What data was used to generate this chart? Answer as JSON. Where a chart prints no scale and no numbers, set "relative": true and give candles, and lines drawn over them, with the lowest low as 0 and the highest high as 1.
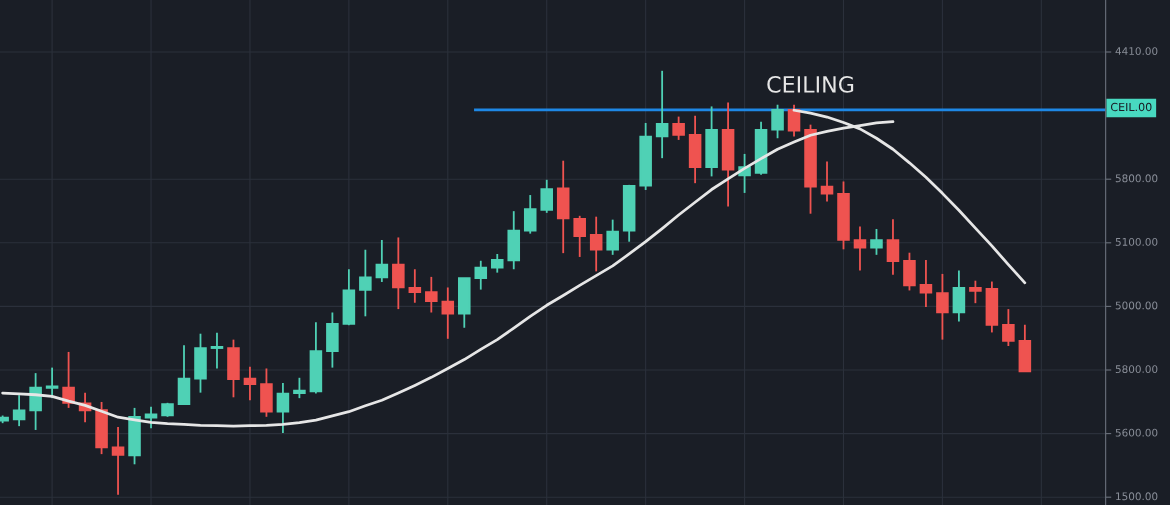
{
  "chart_data": {
    "type": "candlestick",
    "relative": true,
    "categories": [
      null,
      null,
      null,
      null,
      null,
      null,
      null,
      null,
      null,
      null,
      null,
      null,
      null,
      null,
      null,
      null,
      null,
      null,
      null,
      null,
      null,
      null,
      null,
      null,
      null,
      null,
      null,
      null,
      null,
      null,
      null,
      null,
      null,
      null,
      null,
      null,
      null,
      null,
      null,
      null,
      null,
      null,
      null,
      null,
      null,
      null,
      null,
      null,
      null,
      null,
      null,
      null,
      null,
      null,
      null,
      null,
      null,
      null,
      null,
      null,
      null,
      null,
      null
    ],
    "ohlc": [
      [
        0.175,
        0.187,
        0.169,
        0.182
      ],
      [
        0.178,
        0.235,
        0.162,
        0.199
      ],
      [
        0.199,
        0.287,
        0.153,
        0.253
      ],
      [
        0.252,
        0.3,
        0.228,
        0.256
      ],
      [
        0.253,
        0.337,
        0.205,
        0.217
      ],
      [
        0.216,
        0.241,
        0.171,
        0.199
      ],
      [
        0.2,
        0.219,
        0.096,
        0.112
      ],
      [
        0.112,
        0.16,
        0,
        0.094
      ],
      [
        0.093,
        0.205,
        0.072,
        0.184
      ],
      [
        0.182,
        0.208,
        0.157,
        0.19
      ],
      [
        0.187,
        0.217,
        0.184,
        0.214
      ],
      [
        0.214,
        0.353,
        0.214,
        0.274
      ],
      [
        0.274,
        0.38,
        0.241,
        0.346
      ],
      [
        0.346,
        0.382,
        0.298,
        0.349
      ],
      [
        0.346,
        0.366,
        0.23,
        0.273
      ],
      [
        0.274,
        0.302,
        0.223,
        0.261
      ],
      [
        0.261,
        0.298,
        0.184,
        0.196
      ],
      [
        0.196,
        0.264,
        0.146,
        0.239
      ],
      [
        0.24,
        0.276,
        0.228,
        0.246
      ],
      [
        0.244,
        0.407,
        0.239,
        0.339
      ],
      [
        0.339,
        0.43,
        0.3,
        0.403
      ],
      [
        0.403,
        0.532,
        0.4,
        0.482
      ],
      [
        0.483,
        0.578,
        0.421,
        0.513
      ],
      [
        0.513,
        0.601,
        0.502,
        0.543
      ],
      [
        0.543,
        0.607,
        0.438,
        0.489
      ],
      [
        0.488,
        0.532,
        0.453,
        0.478
      ],
      [
        0.478,
        0.514,
        0.43,
        0.457
      ],
      [
        0.456,
        0.489,
        0.368,
        0.427
      ],
      [
        0.427,
        0.511,
        0.394,
        0.511
      ],
      [
        0.511,
        0.552,
        0.484,
        0.536
      ],
      [
        0.536,
        0.568,
        0.524,
        0.554
      ],
      [
        0.553,
        0.669,
        0.532,
        0.623
      ],
      [
        0.623,
        0.707,
        0.616,
        0.674
      ],
      [
        0.672,
        0.743,
        0.665,
        0.721
      ],
      [
        0.723,
        0.788,
        0.57,
        0.652
      ],
      [
        0.651,
        0.658,
        0.561,
        0.61
      ],
      [
        0.613,
        0.656,
        0.527,
        0.578
      ],
      [
        0.578,
        0.649,
        0.566,
        0.621
      ],
      [
        0.623,
        0.731,
        0.597,
        0.729
      ],
      [
        0.729,
        0.877,
        0.719,
        0.845
      ],
      [
        0.845,
        1,
        0.794,
        0.875
      ],
      [
        0.875,
        0.892,
        0.837,
        0.849
      ],
      [
        0.849,
        0.894,
        0.735,
        0.773
      ],
      [
        0.773,
        0.916,
        0.751,
        0.861
      ],
      [
        0.861,
        0.925,
        0.68,
        0.767
      ],
      [
        0.753,
        0.804,
        0.712,
        0.773
      ],
      [
        0.759,
        0.88,
        0.755,
        0.861
      ],
      [
        0.861,
        0.92,
        0.841,
        0.908
      ],
      [
        0.908,
        0.92,
        0.845,
        0.859
      ],
      [
        0.861,
        0.873,
        0.663,
        0.727
      ],
      [
        0.727,
        0.786,
        0.692,
        0.71
      ],
      [
        0.71,
        0.739,
        0.579,
        0.601
      ],
      [
        0.601,
        0.633,
        0.529,
        0.583
      ],
      [
        0.583,
        0.627,
        0.566,
        0.601
      ],
      [
        0.601,
        0.65,
        0.519,
        0.551
      ],
      [
        0.552,
        0.571,
        0.482,
        0.494
      ],
      [
        0.495,
        0.554,
        0.443,
        0.477
      ],
      [
        0.476,
        0.521,
        0.366,
        0.43
      ],
      [
        0.43,
        0.529,
        0.409,
        0.488
      ],
      [
        0.488,
        0.505,
        0.452,
        0.481
      ],
      [
        0.486,
        0.503,
        0.383,
        0.401
      ],
      [
        0.401,
        0.438,
        0.351,
        0.363
      ],
      [
        0.363,
        0.401,
        0.291,
        0.291
      ]
    ],
    "colors": [
      "#4fd1b5",
      "#4fd1b5",
      "#4fd1b5",
      "#4fd1b5",
      "#ef5350",
      "#ef5350",
      "#ef5350",
      "#ef5350",
      "#4fd1b5",
      "#4fd1b5",
      "#4fd1b5",
      "#4fd1b5",
      "#4fd1b5",
      "#4fd1b5",
      "#ef5350",
      "#ef5350",
      "#ef5350",
      "#4fd1b5",
      "#4fd1b5",
      "#4fd1b5",
      "#4fd1b5",
      "#4fd1b5",
      "#4fd1b5",
      "#4fd1b5",
      "#ef5350",
      "#ef5350",
      "#ef5350",
      "#ef5350",
      "#4fd1b5",
      "#4fd1b5",
      "#4fd1b5",
      "#4fd1b5",
      "#4fd1b5",
      "#4fd1b5",
      "#ef5350",
      "#ef5350",
      "#ef5350",
      "#4fd1b5",
      "#4fd1b5",
      "#4fd1b5",
      "#4fd1b5",
      "#ef5350",
      "#ef5350",
      "#4fd1b5",
      "#ef5350",
      "#4fd1b5",
      "#4fd1b5",
      "#4fd1b5",
      "#ef5350",
      "#ef5350",
      "#ef5350",
      "#ef5350",
      "#ef5350",
      "#4fd1b5",
      "#ef5350",
      "#ef5350",
      "#ef5350",
      "#ef5350",
      "#4fd1b5",
      "#ef5350",
      "#ef5350",
      "#ef5350",
      "#ef5350"
    ],
    "series": [
      {
        "type": "line",
        "color": "#e6e6e6",
        "values": [
          0.24,
          0.238,
          0.236,
          0.232,
          0.221,
          0.211,
          0.197,
          0.183,
          0.177,
          0.171,
          0.168,
          0.166,
          0.164,
          0.163,
          0.162,
          0.163,
          0.164,
          0.166,
          0.17,
          0.176,
          0.186,
          0.196,
          0.21,
          0.223,
          0.24,
          0.258,
          0.277,
          0.298,
          0.319,
          0.343,
          0.366,
          0.393,
          0.421,
          0.447,
          0.47,
          0.494,
          0.517,
          0.54,
          0.568,
          0.597,
          0.628,
          0.66,
          0.69,
          0.72,
          0.745,
          0.77,
          0.793,
          0.815,
          0.832,
          0.848,
          0.857,
          0.865,
          0.871,
          0.877,
          0.88,
          null,
          null,
          null,
          null,
          null,
          null,
          null,
          null
        ]
      },
      {
        "type": "line",
        "color": "#e6e6e6",
        "values": [
          null,
          null,
          null,
          null,
          null,
          null,
          null,
          null,
          null,
          null,
          null,
          null,
          null,
          null,
          null,
          null,
          null,
          null,
          null,
          null,
          null,
          null,
          null,
          null,
          null,
          null,
          null,
          null,
          null,
          null,
          null,
          null,
          null,
          null,
          null,
          null,
          null,
          null,
          null,
          null,
          null,
          null,
          null,
          null,
          null,
          null,
          null,
          null,
          0.907,
          0.9,
          0.891,
          0.878,
          0.863,
          0.841,
          0.815,
          0.783,
          0.749,
          0.711,
          0.671,
          0.629,
          0.587,
          0.543,
          0.5
        ]
      }
    ],
    "ref_lines": [
      {
        "axis": "y",
        "value": 0.908,
        "label": "CEILING",
        "color": "#1e88e5"
      }
    ],
    "annotations": [
      "4410.00",
      "CEIL.00",
      "5800.00",
      "5100.00",
      "5000.00",
      "5800.00",
      "5600.00",
      "1500.00"
    ],
    "grid": true,
    "marker": "none",
    "line_style": "solid"
  }
}
